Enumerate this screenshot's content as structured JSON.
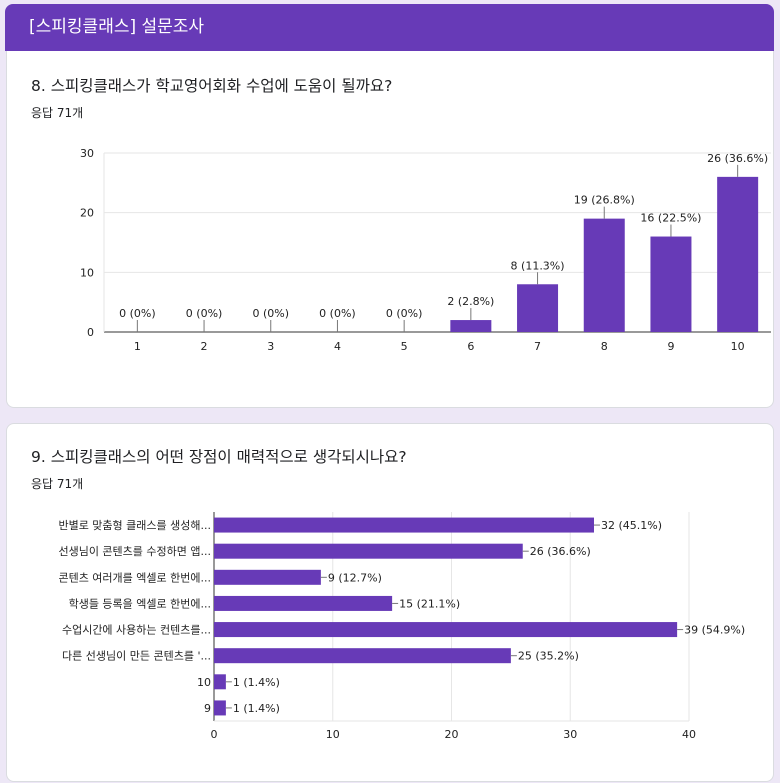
{
  "header": {
    "title": "[스피킹클래스] 설문조사"
  },
  "question8": {
    "title": "8. 스피킹클래스가 학교영어회화 수업에 도움이 될까요?",
    "responses": "응답 71개"
  },
  "question9": {
    "title": "9. 스피킹클래스의 어떤 장점이 매력적으로 생각되시나요?",
    "responses": "응답 71개"
  },
  "colors": {
    "accent": "#673ab7",
    "bar": "#673ab7"
  },
  "chart_data": [
    {
      "type": "bar",
      "title": "8. 스피킹클래스가 학교영어회화 수업에 도움이 될까요?",
      "categories": [
        "1",
        "2",
        "3",
        "4",
        "5",
        "6",
        "7",
        "8",
        "9",
        "10"
      ],
      "values": [
        0,
        0,
        0,
        0,
        0,
        2,
        8,
        19,
        16,
        26
      ],
      "data_labels": [
        "0 (0%)",
        "0 (0%)",
        "0 (0%)",
        "0 (0%)",
        "0 (0%)",
        "2 (2.8%)",
        "8 (11.3%)",
        "19 (26.8%)",
        "16 (22.5%)",
        "26 (36.6%)"
      ],
      "yticks": [
        0,
        10,
        20,
        30
      ],
      "ylim": [
        0,
        30
      ],
      "xlabel": "",
      "ylabel": "",
      "grid": true
    },
    {
      "type": "bar",
      "orientation": "horizontal",
      "title": "9. 스피킹클래스의 어떤 장점이 매력적으로 생각되시나요?",
      "categories": [
        "반별로 맞춤형 클래스를 생성해...",
        "선생님이 콘텐츠를 수정하면 앱...",
        "콘텐츠 여러개를 엑셀로 한번에...",
        "학생들 등록을 엑셀로 한번에...",
        "수업시간에 사용하는 컨텐츠를...",
        "다른 선생님이 만든 콘텐츠를 '...",
        "10",
        "9"
      ],
      "values": [
        32,
        26,
        9,
        15,
        39,
        25,
        1,
        1
      ],
      "data_labels": [
        "32 (45.1%)",
        "26 (36.6%)",
        "9 (12.7%)",
        "15 (21.1%)",
        "39 (54.9%)",
        "25 (35.2%)",
        "1 (1.4%)",
        "1 (1.4%)"
      ],
      "xticks": [
        0,
        10,
        20,
        30,
        40
      ],
      "xlim": [
        0,
        40
      ],
      "xlabel": "",
      "ylabel": "",
      "grid": true
    }
  ]
}
